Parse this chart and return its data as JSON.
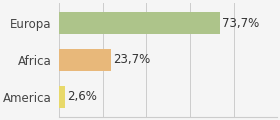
{
  "categories": [
    "America",
    "Africa",
    "Europa"
  ],
  "values": [
    2.6,
    23.7,
    73.7
  ],
  "labels": [
    "2,6%",
    "23,7%",
    "73,7%"
  ],
  "bar_colors": [
    "#e8d96a",
    "#e8b87a",
    "#adc48a"
  ],
  "background_color": "#f5f5f5",
  "xlim": [
    0,
    100
  ],
  "label_fontsize": 8.5,
  "tick_fontsize": 8.5
}
